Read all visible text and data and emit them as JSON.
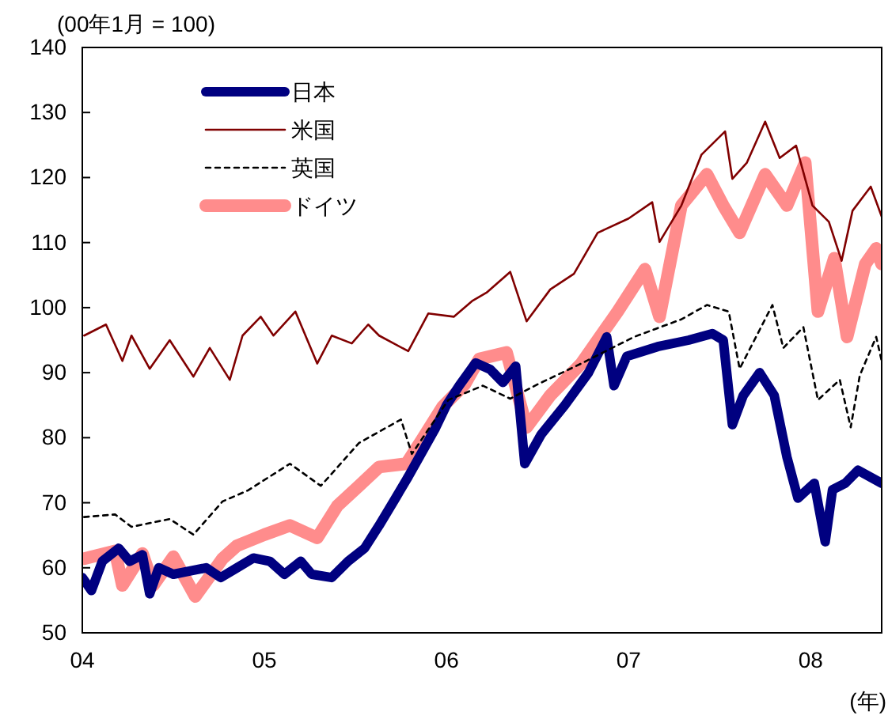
{
  "chart_data": {
    "type": "line",
    "ylabel": "(00年1月 = 100)",
    "xlabel": "(年)",
    "xlim": [
      2004,
      2008.39
    ],
    "xticks": [
      {
        "value": 2004,
        "label": "04"
      },
      {
        "value": 2005,
        "label": "05"
      },
      {
        "value": 2006,
        "label": "06"
      },
      {
        "value": 2007,
        "label": "07"
      },
      {
        "value": 2008,
        "label": "08"
      }
    ],
    "ylim": [
      50,
      140
    ],
    "yticks": [
      50,
      60,
      70,
      80,
      90,
      100,
      110,
      120,
      130,
      140
    ],
    "grid": false,
    "legend": "top left",
    "series": [
      {
        "name": "日本",
        "color": "#000080",
        "line_style": "solid",
        "x": [
          2004.0,
          2004.05,
          2004.11,
          2004.2,
          2004.26,
          2004.33,
          2004.37,
          2004.42,
          2004.5,
          2004.59,
          2004.68,
          2004.76,
          2004.85,
          2004.94,
          2005.03,
          2005.11,
          2005.2,
          2005.26,
          2005.37,
          2005.46,
          2005.55,
          2005.63,
          2005.72,
          2005.79,
          2005.85,
          2005.94,
          2006.0,
          2006.07,
          2006.16,
          2006.24,
          2006.31,
          2006.38,
          2006.43,
          2006.52,
          2006.65,
          2006.78,
          2006.88,
          2006.92,
          2006.99,
          2007.16,
          2007.33,
          2007.46,
          2007.52,
          2007.57,
          2007.63,
          2007.72,
          2007.8,
          2007.87,
          2007.93,
          2008.02,
          2008.08,
          2008.12,
          2008.19,
          2008.26,
          2008.39
        ],
        "values": [
          58.5,
          56.5,
          61,
          63,
          61,
          62,
          56,
          60,
          59,
          59.5,
          60,
          58.5,
          60,
          61.5,
          61,
          59,
          61,
          59,
          58.5,
          61,
          63,
          66.5,
          70.7,
          74,
          77,
          81.5,
          85,
          88,
          91.5,
          90.5,
          88.5,
          91,
          76,
          80.5,
          85,
          90,
          95.5,
          88,
          92.5,
          94,
          95,
          96,
          95,
          82,
          86.5,
          90,
          86.5,
          77,
          70.7,
          73,
          64,
          72,
          73,
          75,
          73
        ]
      },
      {
        "name": "米国",
        "color": "#800000",
        "line_style": "solid",
        "x": [
          2004.01,
          2004.13,
          2004.22,
          2004.27,
          2004.37,
          2004.48,
          2004.61,
          2004.7,
          2004.81,
          2004.88,
          2004.98,
          2005.05,
          2005.17,
          2005.29,
          2005.37,
          2005.48,
          2005.57,
          2005.63,
          2005.79,
          2005.9,
          2006.04,
          2006.14,
          2006.22,
          2006.35,
          2006.44,
          2006.57,
          2006.7,
          2006.83,
          2007.0,
          2007.13,
          2007.17,
          2007.29,
          2007.4,
          2007.53,
          2007.57,
          2007.65,
          2007.75,
          2007.83,
          2007.92,
          2008.01,
          2008.1,
          2008.17,
          2008.23,
          2008.33,
          2008.39
        ],
        "values": [
          95.7,
          97.4,
          91.8,
          95.7,
          90.6,
          95,
          89.4,
          93.8,
          88.9,
          95.7,
          98.6,
          95.7,
          99.4,
          91.4,
          95.7,
          94.5,
          97.4,
          95.7,
          93.3,
          99.1,
          98.6,
          101,
          102.3,
          105.5,
          97.9,
          102.8,
          105.2,
          111.5,
          113.7,
          116.2,
          110.1,
          115.7,
          123.5,
          127.1,
          119.8,
          122.3,
          128.6,
          123,
          124.9,
          115.7,
          113.2,
          107.2,
          114.9,
          118.6,
          114
        ]
      },
      {
        "name": "英国",
        "color": "#000000",
        "line_style": "dashed",
        "x": [
          2004.01,
          2004.18,
          2004.27,
          2004.48,
          2004.61,
          2004.77,
          2004.91,
          2005.14,
          2005.31,
          2005.52,
          2005.75,
          2005.81,
          2006.01,
          2006.2,
          2006.35,
          2006.5,
          2006.74,
          2007.03,
          2007.29,
          2007.43,
          2007.55,
          2007.61,
          2007.7,
          2007.79,
          2007.85,
          2007.96,
          2008.04,
          2008.16,
          2008.22,
          2008.27,
          2008.36,
          2008.39
        ],
        "values": [
          67.8,
          68.2,
          66.3,
          67.5,
          65.1,
          70.2,
          71.9,
          76,
          72.6,
          79.2,
          82.8,
          77.5,
          85.8,
          88,
          86,
          88.2,
          91.4,
          95.5,
          98.2,
          100.4,
          99.4,
          90.6,
          95.5,
          100.4,
          93.8,
          97,
          85.8,
          88.9,
          81.6,
          89.6,
          95.5,
          91.8
        ]
      },
      {
        "name": "ドイツ",
        "color": "#ff8c8c",
        "line_style": "solid",
        "x": [
          2004.01,
          2004.18,
          2004.22,
          2004.33,
          2004.39,
          2004.5,
          2004.62,
          2004.77,
          2004.85,
          2005.0,
          2005.14,
          2005.29,
          2005.4,
          2005.52,
          2005.63,
          2005.78,
          2005.87,
          2005.98,
          2006.1,
          2006.18,
          2006.33,
          2006.44,
          2006.57,
          2006.74,
          2006.94,
          2007.09,
          2007.17,
          2007.29,
          2007.43,
          2007.52,
          2007.61,
          2007.75,
          2007.87,
          2007.97,
          2008.04,
          2008.13,
          2008.2,
          2008.3,
          2008.36,
          2008.39
        ],
        "values": [
          61.4,
          62.6,
          57.3,
          62.2,
          57.3,
          61.7,
          55.6,
          61.4,
          63.4,
          65.1,
          66.5,
          64.6,
          69.5,
          72.6,
          75.5,
          76,
          79.9,
          84.8,
          88.2,
          92.1,
          93.1,
          81.6,
          86.5,
          91.4,
          99.4,
          105.9,
          98.6,
          115.7,
          120.5,
          115.7,
          111.5,
          120.5,
          115.7,
          122.3,
          99.4,
          107.6,
          95.5,
          106.7,
          109.1,
          106.7
        ]
      }
    ]
  }
}
